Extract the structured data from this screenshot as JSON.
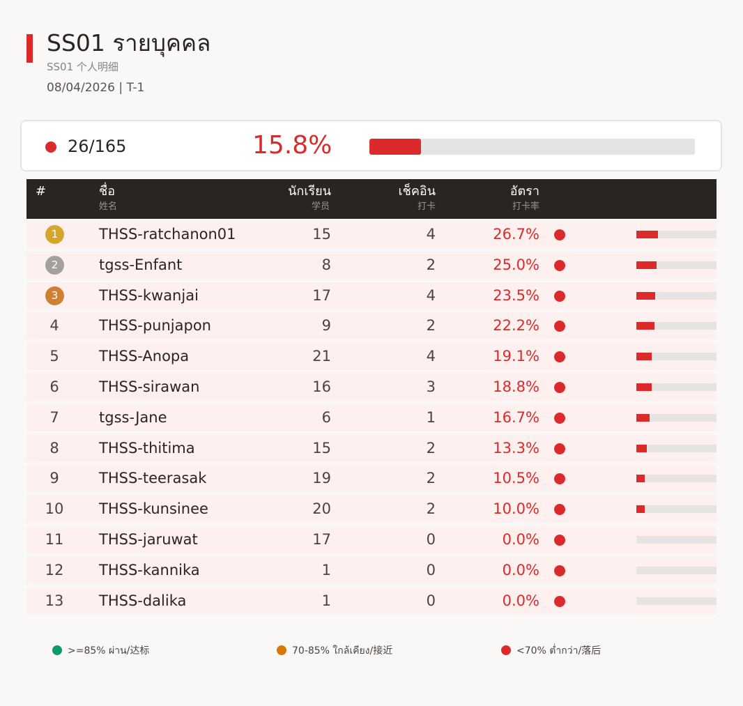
{
  "header": {
    "title": "SS01  รายบุคคล",
    "subtitle": "SS01  个人明细",
    "dateline": "08/04/2026   |   T-1"
  },
  "summary": {
    "count": "26/165",
    "rate_text": "15.8%",
    "rate_value": 15.8,
    "status_color": "#dc2a2a"
  },
  "table": {
    "columns": {
      "rank": {
        "label": "#"
      },
      "name": {
        "label": "ชื่อ",
        "sub": "姓名"
      },
      "students": {
        "label": "นักเรียน",
        "sub": "学员"
      },
      "checkins": {
        "label": "เช็คอิน",
        "sub": "打卡"
      },
      "rate": {
        "label": "อัตรา",
        "sub": "打卡率"
      }
    },
    "rows": [
      {
        "rank": "1",
        "medal": "gold",
        "name": "THSS-ratchanon01",
        "students": "15",
        "checkins": "4",
        "rate": "26.7%",
        "rate_value": 26.7
      },
      {
        "rank": "2",
        "medal": "silver",
        "name": "tgss-Enfant",
        "students": "8",
        "checkins": "2",
        "rate": "25.0%",
        "rate_value": 25.0
      },
      {
        "rank": "3",
        "medal": "bronze",
        "name": "THSS-kwanjai",
        "students": "17",
        "checkins": "4",
        "rate": "23.5%",
        "rate_value": 23.5
      },
      {
        "rank": "4",
        "name": "THSS-punjapon",
        "students": "9",
        "checkins": "2",
        "rate": "22.2%",
        "rate_value": 22.2
      },
      {
        "rank": "5",
        "name": "THSS-Anopa",
        "students": "21",
        "checkins": "4",
        "rate": "19.1%",
        "rate_value": 19.1
      },
      {
        "rank": "6",
        "name": "THSS-sirawan",
        "students": "16",
        "checkins": "3",
        "rate": "18.8%",
        "rate_value": 18.8
      },
      {
        "rank": "7",
        "name": "tgss-Jane",
        "students": "6",
        "checkins": "1",
        "rate": "16.7%",
        "rate_value": 16.7
      },
      {
        "rank": "8",
        "name": "THSS-thitima",
        "students": "15",
        "checkins": "2",
        "rate": "13.3%",
        "rate_value": 13.3
      },
      {
        "rank": "9",
        "name": "THSS-teerasak",
        "students": "19",
        "checkins": "2",
        "rate": "10.5%",
        "rate_value": 10.5
      },
      {
        "rank": "10",
        "name": "THSS-kunsinee",
        "students": "20",
        "checkins": "2",
        "rate": "10.0%",
        "rate_value": 10.0
      },
      {
        "rank": "11",
        "name": "THSS-jaruwat",
        "students": "17",
        "checkins": "0",
        "rate": "0.0%",
        "rate_value": 0.0
      },
      {
        "rank": "12",
        "name": "THSS-kannika",
        "students": "1",
        "checkins": "0",
        "rate": "0.0%",
        "rate_value": 0.0
      },
      {
        "rank": "13",
        "name": "THSS-dalika",
        "students": "1",
        "checkins": "0",
        "rate": "0.0%",
        "rate_value": 0.0
      }
    ]
  },
  "legend": [
    {
      "color": "#0b9a6d",
      "label": ">=85% ผ่าน/达标"
    },
    {
      "color": "#d97706",
      "label": "70-85% ใกล้เคียง/接近"
    },
    {
      "color": "#dc2a2a",
      "label": "<70% ต่ำกว่า/落后"
    }
  ],
  "colors": {
    "accent": "#dc2a2a",
    "medal_gold": "#d4a72c",
    "medal_silver": "#a3a09d",
    "medal_bronze": "#cd7f32",
    "header_bg": "#2a2422",
    "row_bg": "#fdf0ef"
  }
}
